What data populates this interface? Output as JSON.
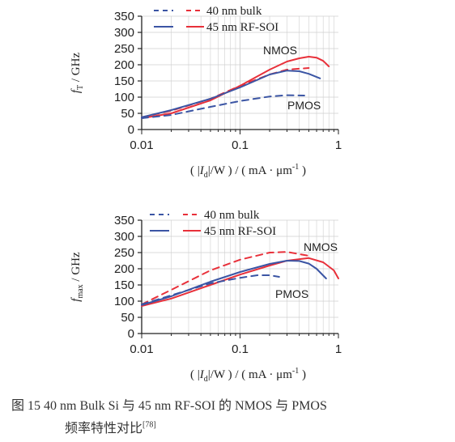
{
  "caption": {
    "line1": "图 15   40 nm Bulk Si 与 45 nm RF-SOI 的 NMOS 与 PMOS",
    "line2": "频率特性对比",
    "ref": "[78]"
  },
  "colors": {
    "bulk_sim": "#3b55a4",
    "soi": "#e8303a",
    "axis": "#222222",
    "grid": "#cfcfcf"
  },
  "chart_data": [
    {
      "type": "line",
      "ylabel": "f_T / GHz",
      "ylabel_main": "f",
      "ylabel_sub": "T",
      "ylabel_unit": " / GHz",
      "xlabel": "( |I_d|/W ) / ( mA · μm^-1 )",
      "xscale": "log",
      "xlim": [
        0.01,
        1
      ],
      "ylim": [
        0,
        350
      ],
      "xticks": [
        "0.01",
        "0.1",
        "1"
      ],
      "yticks": [
        "0",
        "50",
        "100",
        "150",
        "200",
        "250",
        "300",
        "350"
      ],
      "legend": [
        {
          "label": "40 nm bulk",
          "style": "dashed"
        },
        {
          "label": "45 nm RF-SOI",
          "style": "solid"
        }
      ],
      "annotations": [
        "NMOS",
        "PMOS"
      ],
      "series": [
        {
          "device": "NMOS",
          "tech": "40 nm bulk",
          "color": "#e8303a",
          "dash": true,
          "x": [
            0.01,
            0.02,
            0.05,
            0.1,
            0.2,
            0.3,
            0.5
          ],
          "y": [
            38,
            58,
            95,
            135,
            170,
            185,
            190
          ]
        },
        {
          "device": "NMOS",
          "tech": "45 nm RF-SOI",
          "color": "#e8303a",
          "dash": false,
          "x": [
            0.01,
            0.02,
            0.05,
            0.1,
            0.2,
            0.3,
            0.4,
            0.5,
            0.6,
            0.7,
            0.8
          ],
          "y": [
            35,
            50,
            90,
            135,
            185,
            210,
            220,
            225,
            222,
            212,
            195
          ]
        },
        {
          "device": "PMOS",
          "tech": "40 nm bulk",
          "color": "#3b55a4",
          "dash": true,
          "x": [
            0.01,
            0.02,
            0.05,
            0.1,
            0.2,
            0.3,
            0.45
          ],
          "y": [
            35,
            45,
            70,
            88,
            102,
            106,
            105
          ]
        },
        {
          "device": "PMOS",
          "tech": "45 nm RF-SOI",
          "color": "#3b55a4",
          "dash": false,
          "x": [
            0.01,
            0.02,
            0.05,
            0.1,
            0.2,
            0.3,
            0.4,
            0.5,
            0.65
          ],
          "y": [
            38,
            60,
            95,
            130,
            170,
            182,
            180,
            172,
            158
          ]
        }
      ]
    },
    {
      "type": "line",
      "ylabel": "f_max / GHz",
      "ylabel_main": "f",
      "ylabel_sub": "max",
      "ylabel_unit": " / GHz",
      "xlabel": "( |I_d|/W ) / ( mA · μm^-1 )",
      "xscale": "log",
      "xlim": [
        0.01,
        1
      ],
      "ylim": [
        0,
        350
      ],
      "xticks": [
        "0.01",
        "0.1",
        "1"
      ],
      "yticks": [
        "0",
        "50",
        "100",
        "150",
        "200",
        "250",
        "300",
        "350"
      ],
      "legend": [
        {
          "label": "40 nm bulk",
          "style": "dashed"
        },
        {
          "label": "45 nm RF-SOI",
          "style": "solid"
        }
      ],
      "annotations": [
        "NMOS",
        "PMOS"
      ],
      "series": [
        {
          "device": "NMOS",
          "tech": "40 nm bulk",
          "color": "#e8303a",
          "dash": true,
          "x": [
            0.01,
            0.02,
            0.05,
            0.1,
            0.2,
            0.3,
            0.5
          ],
          "y": [
            90,
            135,
            195,
            228,
            250,
            252,
            240
          ]
        },
        {
          "device": "NMOS",
          "tech": "45 nm RF-SOI",
          "color": "#e8303a",
          "dash": false,
          "x": [
            0.01,
            0.02,
            0.05,
            0.1,
            0.2,
            0.3,
            0.5,
            0.7,
            0.9,
            1.0
          ],
          "y": [
            85,
            108,
            150,
            182,
            210,
            225,
            233,
            220,
            195,
            170
          ]
        },
        {
          "device": "PMOS",
          "tech": "40 nm bulk",
          "color": "#3b55a4",
          "dash": true,
          "x": [
            0.01,
            0.02,
            0.05,
            0.1,
            0.15,
            0.2,
            0.25
          ],
          "y": [
            90,
            118,
            155,
            172,
            180,
            180,
            175
          ]
        },
        {
          "device": "PMOS",
          "tech": "45 nm RF-SOI",
          "color": "#3b55a4",
          "dash": false,
          "x": [
            0.01,
            0.02,
            0.05,
            0.1,
            0.2,
            0.3,
            0.4,
            0.5,
            0.6,
            0.75
          ],
          "y": [
            88,
            115,
            160,
            190,
            215,
            225,
            224,
            216,
            200,
            170
          ]
        }
      ]
    }
  ]
}
